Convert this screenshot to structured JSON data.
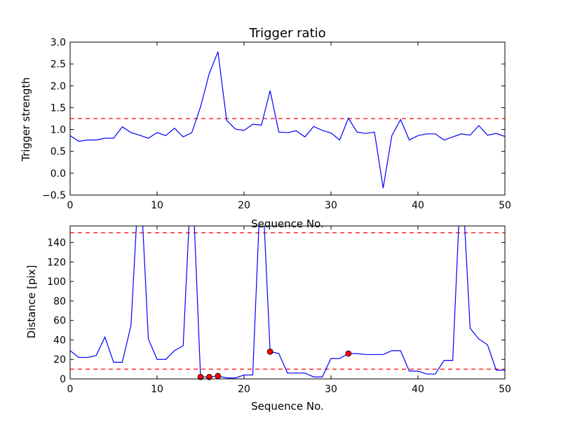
{
  "chart_data": [
    {
      "type": "line",
      "title": "Trigger ratio",
      "xlabel": "Sequence No.",
      "ylabel": "Trigger strength",
      "xlim": [
        0,
        50
      ],
      "ylim": [
        -0.5,
        3.0
      ],
      "xticks": [
        "0",
        "10",
        "20",
        "30",
        "40",
        "50"
      ],
      "yticks": [
        "−0.5",
        "0.0",
        "0.5",
        "1.0",
        "1.5",
        "2.0",
        "2.5",
        "3.0"
      ],
      "threshold": 1.25,
      "line_color": "#0000ff",
      "threshold_color": "#ff0000",
      "x": [
        0,
        1,
        2,
        3,
        4,
        5,
        6,
        7,
        8,
        9,
        10,
        11,
        12,
        13,
        14,
        15,
        16,
        17,
        18,
        19,
        20,
        21,
        22,
        23,
        24,
        25,
        26,
        27,
        28,
        29,
        30,
        31,
        32,
        33,
        34,
        35,
        36,
        37,
        38,
        39,
        40,
        41,
        42,
        43,
        44,
        45,
        46,
        47,
        48,
        49,
        50
      ],
      "y": [
        0.86,
        0.73,
        0.76,
        0.76,
        0.8,
        0.8,
        1.06,
        0.93,
        0.87,
        0.8,
        0.93,
        0.86,
        1.03,
        0.83,
        0.93,
        1.52,
        2.28,
        2.78,
        1.21,
        1.01,
        0.98,
        1.12,
        1.1,
        1.89,
        0.94,
        0.93,
        0.97,
        0.83,
        1.07,
        0.98,
        0.92,
        0.76,
        1.26,
        0.94,
        0.91,
        0.94,
        -0.34,
        0.86,
        1.23,
        0.76,
        0.86,
        0.9,
        0.9,
        0.76,
        0.83,
        0.9,
        0.87,
        1.09,
        0.87,
        0.91,
        0.84
      ]
    },
    {
      "type": "line",
      "title": "",
      "xlabel": "Sequence No.",
      "ylabel": "Distance [pix]",
      "xlim": [
        0,
        50
      ],
      "ylim": [
        0,
        157
      ],
      "xticks": [
        "0",
        "10",
        "20",
        "30",
        "40",
        "50"
      ],
      "yticks": [
        "0",
        "20",
        "40",
        "60",
        "80",
        "100",
        "120",
        "140"
      ],
      "thresholds": [
        10,
        150
      ],
      "line_color": "#0000ff",
      "threshold_color": "#ff0000",
      "marker_color": "#ff0000",
      "x": [
        0,
        1,
        2,
        3,
        4,
        5,
        6,
        7,
        8,
        9,
        10,
        11,
        12,
        13,
        14,
        15,
        16,
        17,
        18,
        19,
        20,
        21,
        22,
        23,
        24,
        25,
        26,
        27,
        28,
        29,
        30,
        31,
        32,
        33,
        34,
        35,
        36,
        37,
        38,
        39,
        40,
        41,
        42,
        43,
        44,
        45,
        46,
        47,
        48,
        49,
        50
      ],
      "y": [
        29,
        22,
        22,
        24,
        43,
        17,
        17,
        55,
        220,
        41,
        20,
        20,
        29,
        34,
        220,
        2,
        2,
        3,
        1,
        1,
        4,
        4,
        220,
        28,
        26,
        6,
        6,
        6,
        2,
        2,
        21,
        21,
        26,
        26,
        25,
        25,
        25,
        29,
        29,
        8,
        8,
        5,
        5,
        19,
        19,
        220,
        52,
        41,
        35,
        9,
        9
      ],
      "markers": [
        {
          "x": 15,
          "y": 2
        },
        {
          "x": 16,
          "y": 2
        },
        {
          "x": 17,
          "y": 3
        },
        {
          "x": 23,
          "y": 28
        },
        {
          "x": 32,
          "y": 26
        }
      ]
    }
  ]
}
